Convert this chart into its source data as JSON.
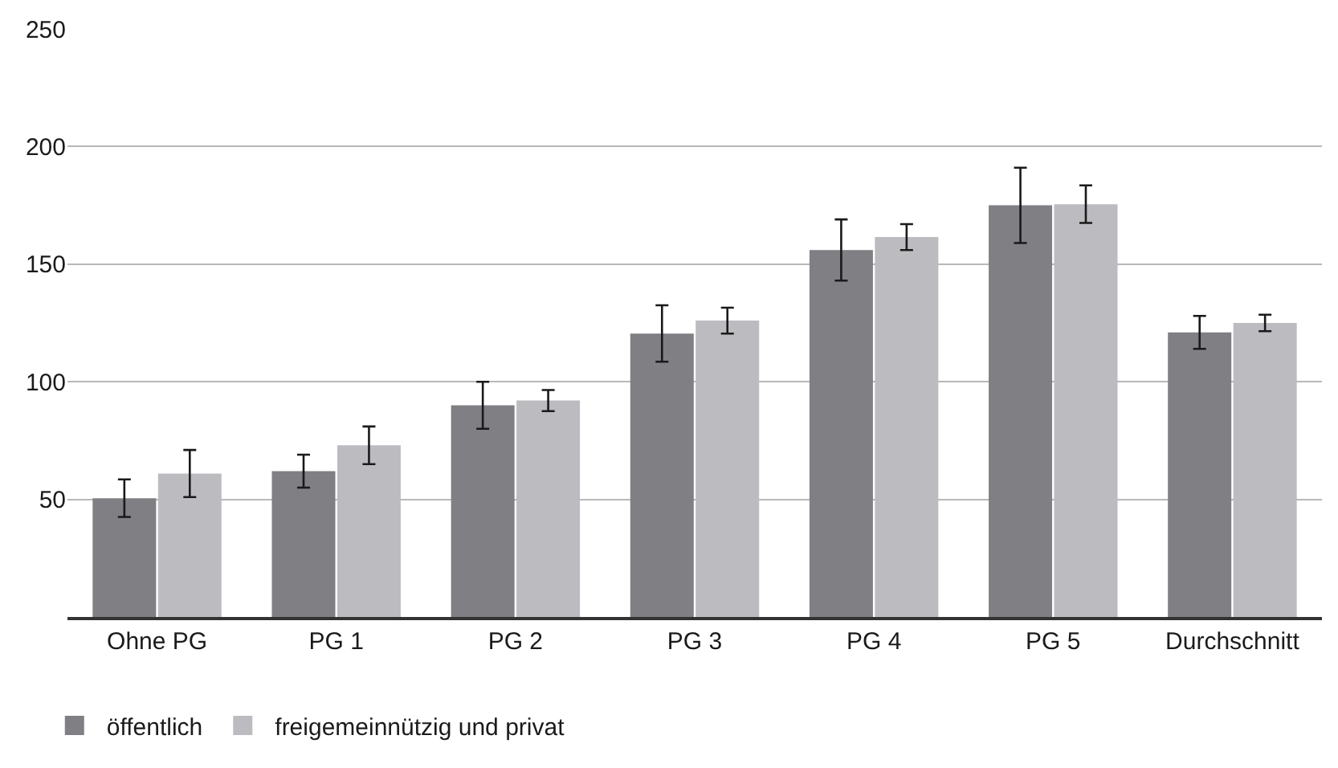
{
  "chart_data": {
    "type": "bar",
    "categories": [
      "Ohne PG",
      "PG 1",
      "PG 2",
      "PG 3",
      "PG 4",
      "PG 5",
      "Durchschnitt"
    ],
    "series": [
      {
        "name": "öffentlich",
        "color": "#7f7f84",
        "values": [
          50.5,
          62,
          90,
          120.5,
          156,
          175,
          121
        ],
        "errors": [
          8,
          7,
          10,
          12,
          13,
          16,
          7
        ]
      },
      {
        "name": "freigemeinnützig und privat",
        "color": "#bcbcc0",
        "values": [
          61,
          73,
          92,
          126,
          161.5,
          175.5,
          125
        ],
        "errors": [
          10,
          8,
          4.5,
          5.5,
          5.5,
          8,
          3.5
        ]
      }
    ],
    "ylim": [
      0,
      250
    ],
    "yticks": [
      50,
      100,
      150,
      200,
      250
    ],
    "grid": "y",
    "legend": "bottom left"
  }
}
